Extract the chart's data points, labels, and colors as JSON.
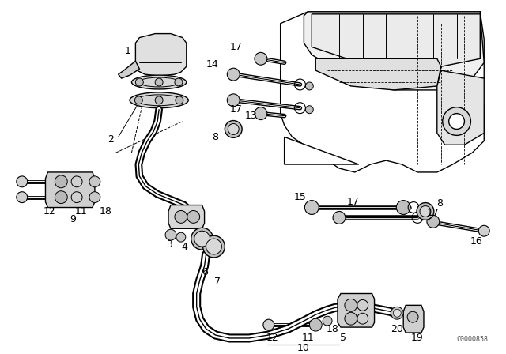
{
  "bg_color": "#ffffff",
  "line_color": "#000000",
  "diagram_code": "C0000858",
  "fig_width": 6.4,
  "fig_height": 4.48,
  "dpi": 100
}
